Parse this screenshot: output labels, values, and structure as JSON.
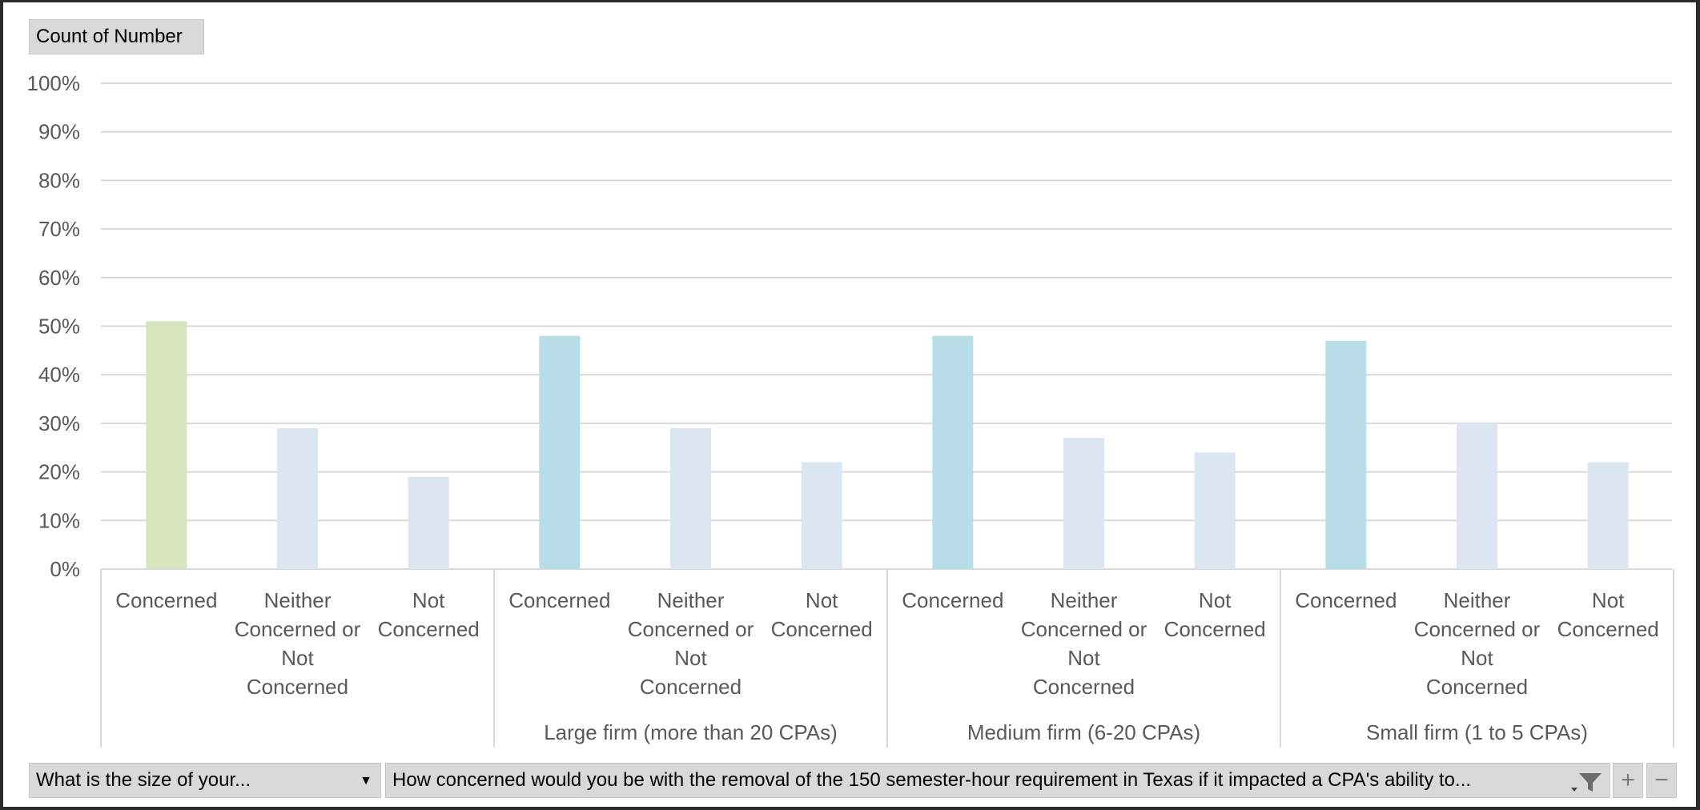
{
  "pivot": {
    "value_field": "Count of Number",
    "row_field": "What is the size of your...",
    "column_field": "How concerned would you be with the removal of the 150 semester-hour requirement in Texas if it impacted a CPA's ability to..."
  },
  "colors": {
    "first_group_concerned": "#d7e4bc",
    "concerned": "#b7dde8",
    "other": "#dce6f2",
    "gridline": "#d9d9d9",
    "axis_text": "#595959"
  },
  "icons": {
    "dropdown": "chevron-down-icon",
    "filter": "filter-icon",
    "expand": "plus-icon",
    "collapse": "minus-icon"
  },
  "chart_data": {
    "type": "bar",
    "title": "",
    "xlabel": "",
    "ylabel": "",
    "ylim": [
      0,
      1
    ],
    "y_ticks": [
      "0%",
      "10%",
      "20%",
      "30%",
      "40%",
      "50%",
      "60%",
      "70%",
      "80%",
      "90%",
      "100%"
    ],
    "grid": true,
    "groups": [
      {
        "name": "",
        "categories": [
          "Concerned",
          "Neither Concerned or Not Concerned",
          "Not Concerned"
        ],
        "values": [
          0.51,
          0.29,
          0.19
        ]
      },
      {
        "name": "Large firm (more than 20 CPAs)",
        "categories": [
          "Concerned",
          "Neither Concerned or Not Concerned",
          "Not Concerned"
        ],
        "values": [
          0.48,
          0.29,
          0.22
        ]
      },
      {
        "name": "Medium firm (6-20 CPAs)",
        "categories": [
          "Concerned",
          "Neither Concerned or Not Concerned",
          "Not Concerned"
        ],
        "values": [
          0.48,
          0.27,
          0.24
        ]
      },
      {
        "name": "Small firm (1 to 5 CPAs)",
        "categories": [
          "Concerned",
          "Neither Concerned or Not Concerned",
          "Not Concerned"
        ],
        "values": [
          0.47,
          0.3,
          0.22
        ]
      }
    ]
  }
}
